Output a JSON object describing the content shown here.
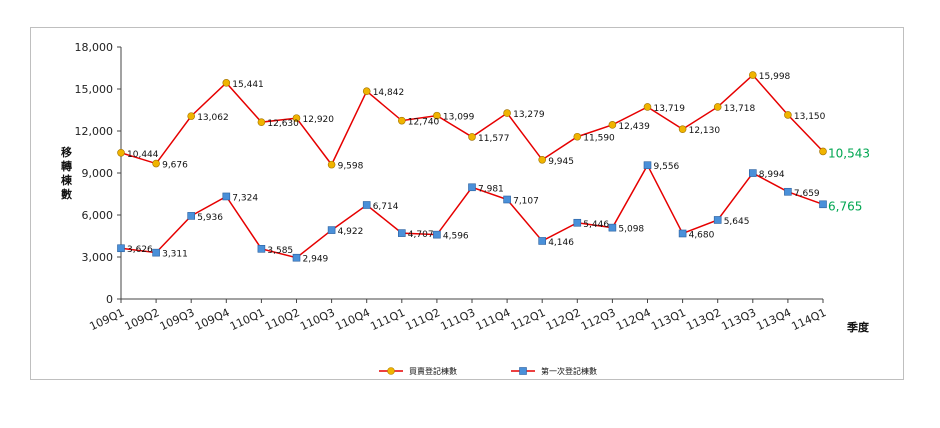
{
  "chart_data": {
    "type": "line",
    "categories": [
      "109Q1",
      "109Q2",
      "109Q3",
      "109Q4",
      "110Q1",
      "110Q2",
      "110Q3",
      "110Q4",
      "111Q1",
      "111Q2",
      "111Q3",
      "111Q4",
      "112Q1",
      "112Q2",
      "112Q3",
      "112Q4",
      "113Q1",
      "113Q2",
      "113Q3",
      "113Q4",
      "114Q1"
    ],
    "series": [
      {
        "name": "買賣登記棟數",
        "color": "#e60000",
        "marker": "circle",
        "marker_color": "#f0b400",
        "values": [
          10444,
          9676,
          13062,
          15441,
          12630,
          12920,
          9598,
          14842,
          12740,
          13099,
          11577,
          13279,
          9945,
          11590,
          12439,
          13719,
          12130,
          13718,
          15998,
          13150,
          10543
        ],
        "labels": [
          "10,444",
          "9,676",
          "13,062",
          "15,441",
          "12,630",
          "12,920",
          "9,598",
          "14,842",
          "12,740",
          "13,099",
          "11,577",
          "13,279",
          "9,945",
          "11,590",
          "12,439",
          "13,719",
          "12,130",
          "13,718",
          "15,998",
          "13,150",
          "10,543"
        ]
      },
      {
        "name": "第一次登記棟數",
        "color": "#e60000",
        "marker": "square",
        "marker_color": "#4a90d9",
        "values": [
          3626,
          3311,
          5936,
          7324,
          3585,
          2949,
          4922,
          6714,
          4707,
          4596,
          7981,
          7107,
          4146,
          5446,
          5098,
          9556,
          4680,
          5645,
          8994,
          7659,
          6765
        ],
        "labels": [
          "3,626",
          "3,311",
          "5,936",
          "7,324",
          "3,585",
          "2,949",
          "4,922",
          "6,714",
          "4,707",
          "4,596",
          "7,981",
          "7,107",
          "4,146",
          "5,446",
          "5,098",
          "9,556",
          "4,680",
          "5,645",
          "8,994",
          "7,659",
          "6,765"
        ]
      }
    ],
    "ylim": [
      0,
      18000
    ],
    "yticks": [
      0,
      3000,
      6000,
      9000,
      12000,
      15000,
      18000
    ],
    "ytick_labels": [
      "0",
      "3,000",
      "6,000",
      "9,000",
      "12,000",
      "15,000",
      "18,000"
    ],
    "ylabel": "移轉棟數",
    "xlabel": "季度",
    "legend_position": "bottom-center",
    "grid": false,
    "last_label_color": "#00a651"
  }
}
